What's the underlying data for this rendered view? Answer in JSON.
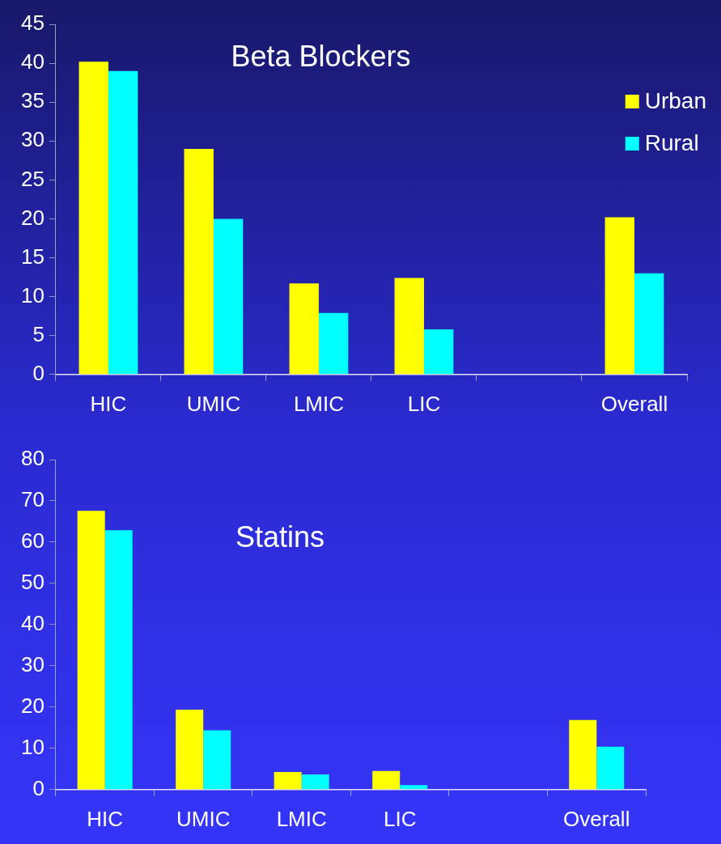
{
  "chart_data": [
    {
      "type": "bar",
      "title": "Beta Blockers",
      "categories": [
        "HIC",
        "UMIC",
        "LMIC",
        "LIC",
        null,
        "Overall"
      ],
      "series": [
        {
          "name": "Urban",
          "color": "#ffff00",
          "values": [
            40.2,
            29,
            11.7,
            12.4,
            null,
            20.2
          ]
        },
        {
          "name": "Rural",
          "color": "#00ffff",
          "values": [
            39,
            20,
            7.9,
            5.8,
            null,
            13
          ]
        }
      ],
      "ylim": [
        0,
        45
      ],
      "yticks": [
        0,
        5,
        10,
        15,
        20,
        25,
        30,
        35,
        40,
        45
      ],
      "legend": "top right"
    },
    {
      "type": "bar",
      "title": "Statins",
      "categories": [
        "HIC",
        "UMIC",
        "LMIC",
        "LIC",
        null,
        "Overall"
      ],
      "series": [
        {
          "color": "#ffff00",
          "values": [
            67.6,
            19.4,
            4.3,
            4.5,
            null,
            16.9
          ]
        },
        {
          "color": "#00ffff",
          "values": [
            62.9,
            14.4,
            3.7,
            1.1,
            null,
            10.4
          ]
        }
      ],
      "ylim": [
        0,
        80
      ],
      "yticks": [
        0,
        10,
        20,
        30,
        40,
        50,
        60,
        70,
        80
      ]
    }
  ]
}
